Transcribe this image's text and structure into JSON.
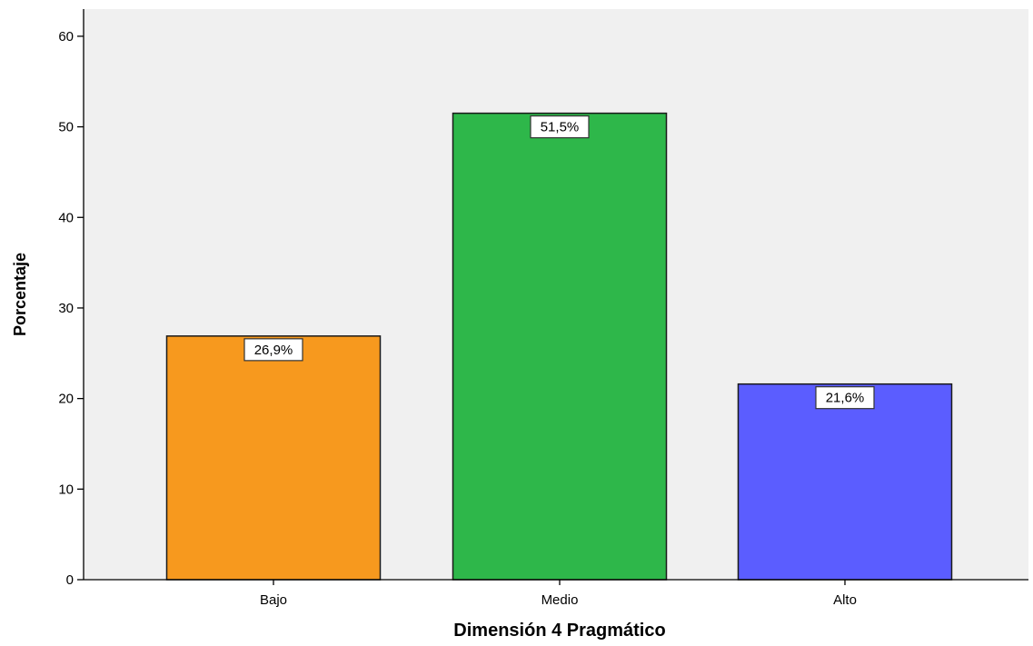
{
  "chart_data": {
    "type": "bar",
    "categories": [
      "Bajo",
      "Medio",
      "Alto"
    ],
    "values": [
      26.9,
      51.5,
      21.6
    ],
    "data_labels": [
      "26,9%",
      "51,5%",
      "21,6%"
    ],
    "colors": [
      "#F7991E",
      "#2EB74A",
      "#5B5DFF"
    ],
    "xlabel": "Dimensión 4 Pragmático",
    "ylabel": "Porcentaje",
    "ylim": [
      0,
      63
    ],
    "yticks": [
      0,
      10,
      20,
      30,
      40,
      50,
      60
    ],
    "plot_background": "#F0F0F0",
    "grid": false,
    "legend": "none"
  }
}
